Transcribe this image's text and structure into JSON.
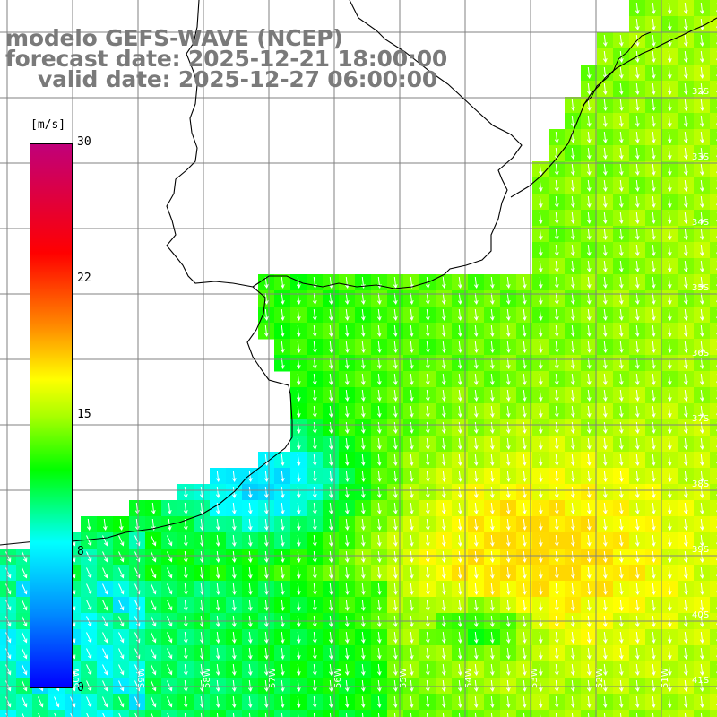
{
  "title": {
    "line1": "modelo GEFS-WAVE (NCEP)",
    "line2": "forecast date: 2025-12-21 18:00:00",
    "line3": "valid date: 2025-12-27 06:00:00"
  },
  "colorbar": {
    "unit": "[m/s]",
    "ticks": [
      "30",
      "22",
      "15",
      "8",
      "0"
    ],
    "tick_values": [
      30,
      22,
      15,
      8,
      0
    ],
    "min": 0,
    "max": 30,
    "stops": [
      {
        "v": 0,
        "c": "#0000ff"
      },
      {
        "v": 4,
        "c": "#0088ff"
      },
      {
        "v": 8,
        "c": "#00ffff"
      },
      {
        "v": 12,
        "c": "#00ff00"
      },
      {
        "v": 15,
        "c": "#aaff00"
      },
      {
        "v": 17,
        "c": "#ffff00"
      },
      {
        "v": 20,
        "c": "#ff8800"
      },
      {
        "v": 24,
        "c": "#ff0000"
      },
      {
        "v": 30,
        "c": "#c0007a"
      }
    ]
  },
  "map": {
    "lat_labels": [
      "32S",
      "33S",
      "34S",
      "35S",
      "36S",
      "37S",
      "38S",
      "39S",
      "40S",
      "41S"
    ],
    "lon_labels": [
      "60W",
      "59W",
      "58W",
      "57W",
      "56W",
      "55W",
      "54W",
      "53W",
      "52W",
      "51W"
    ],
    "grid_color": "#808080",
    "coast_color": "#000000",
    "land_color": "#ffffff",
    "arrow_color": "#ffffff",
    "wind_direction": "from north-northeast"
  }
}
